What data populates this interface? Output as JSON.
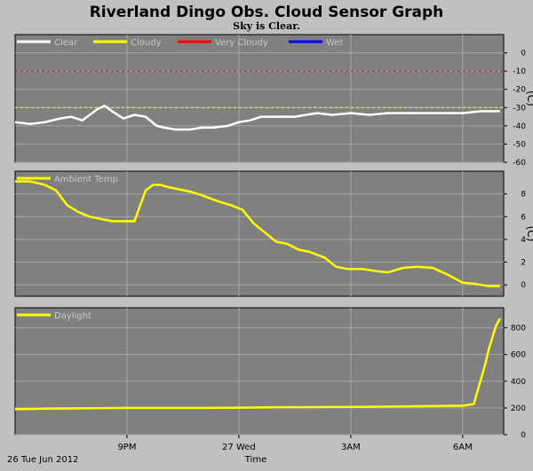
{
  "title": "Riverland Dingo Obs. Cloud Sensor Graph",
  "subtitle": "Sky is Clear.",
  "x_axis": {
    "label": "Time",
    "date_label": "26 Tue Jun 2012",
    "ticks": [
      {
        "t": 3.0,
        "label": "9PM"
      },
      {
        "t": 6.0,
        "label": "27 Wed"
      },
      {
        "t": 9.0,
        "label": "3AM"
      },
      {
        "t": 12.0,
        "label": "6AM"
      }
    ],
    "range_hours_after_6pm": [
      0,
      13.1
    ]
  },
  "colors": {
    "background": "#c0c0c0",
    "plot_background": "#808080",
    "grid": "#a6a6a6",
    "clear": "#ffffff",
    "cloudy": "#ffff00",
    "very_cloudy": "#ff0000",
    "wet": "#0000ff",
    "legend_text": "#c8c8c8"
  },
  "chart_data": [
    {
      "type": "line",
      "name": "sky-temperature",
      "ylabel": "(C)",
      "ylim": [
        -60,
        10
      ],
      "yticks": [
        0,
        -10,
        -20,
        -30,
        -40,
        -50,
        -60
      ],
      "legend": [
        {
          "name": "Clear",
          "color": "#ffffff"
        },
        {
          "name": "Cloudy",
          "color": "#ffff00"
        },
        {
          "name": "Very Cloudy",
          "color": "#ff0000"
        },
        {
          "name": "Wet",
          "color": "#0000ff"
        }
      ],
      "thresholds": [
        {
          "series": "Very Cloudy",
          "y": -10
        },
        {
          "series": "Cloudy",
          "y": -30
        }
      ],
      "series": [
        {
          "name": "Clear",
          "x": [
            0,
            0.4,
            0.8,
            1.2,
            1.5,
            1.8,
            2.0,
            2.2,
            2.4,
            2.6,
            2.9,
            3.2,
            3.5,
            3.8,
            4.0,
            4.3,
            4.7,
            5.0,
            5.3,
            5.7,
            6.0,
            6.3,
            6.6,
            6.9,
            7.2,
            7.5,
            7.8,
            8.1,
            8.5,
            9.0,
            9.5,
            10.0,
            10.5,
            11.0,
            11.5,
            12.0,
            12.5,
            13.0
          ],
          "y": [
            -38,
            -39,
            -38,
            -36,
            -35,
            -37,
            -34,
            -31,
            -29,
            -32,
            -36,
            -34,
            -35,
            -40,
            -41,
            -42,
            -42,
            -41,
            -41,
            -40,
            -38,
            -37,
            -35,
            -35,
            -35,
            -35,
            -34,
            -33,
            -34,
            -33,
            -34,
            -33,
            -33,
            -33,
            -33,
            -33,
            -32,
            -32
          ]
        }
      ]
    },
    {
      "type": "line",
      "name": "ambient-temperature",
      "ylabel": "(C)",
      "ylim": [
        -1,
        10
      ],
      "yticks": [
        8,
        6,
        4,
        2,
        0
      ],
      "legend": [
        {
          "name": "Ambient Temp",
          "color": "#ffff00"
        }
      ],
      "series": [
        {
          "name": "Ambient Temp",
          "x": [
            0,
            0.4,
            0.8,
            1.1,
            1.4,
            1.7,
            2.0,
            2.3,
            2.6,
            2.9,
            3.2,
            3.5,
            3.7,
            3.9,
            4.1,
            4.4,
            4.7,
            5.0,
            5.4,
            5.8,
            6.1,
            6.4,
            6.7,
            7.0,
            7.3,
            7.6,
            7.9,
            8.3,
            8.6,
            8.9,
            9.3,
            9.7,
            10.0,
            10.4,
            10.8,
            11.2,
            11.6,
            12.0,
            12.3,
            12.5,
            12.7,
            13.0
          ],
          "y": [
            9.1,
            9.1,
            8.8,
            8.3,
            7.0,
            6.4,
            6.0,
            5.8,
            5.6,
            5.6,
            5.6,
            8.3,
            8.8,
            8.8,
            8.6,
            8.4,
            8.2,
            7.9,
            7.4,
            7.0,
            6.6,
            5.4,
            4.6,
            3.8,
            3.6,
            3.1,
            2.9,
            2.4,
            1.6,
            1.4,
            1.4,
            1.2,
            1.1,
            1.5,
            1.6,
            1.5,
            0.9,
            0.2,
            0.1,
            0.0,
            -0.1,
            -0.1
          ]
        }
      ]
    },
    {
      "type": "line",
      "name": "daylight",
      "ylabel": "",
      "ylim": [
        0,
        950
      ],
      "yticks": [
        800,
        600,
        400,
        200,
        0
      ],
      "legend": [
        {
          "name": "Daylight",
          "color": "#ffff00"
        }
      ],
      "series": [
        {
          "name": "Daylight",
          "x": [
            0,
            1.0,
            2.0,
            3.0,
            4.0,
            5.0,
            6.0,
            7.0,
            8.0,
            9.0,
            10.0,
            11.0,
            11.5,
            12.0,
            12.3,
            12.6,
            12.7,
            12.8,
            12.9,
            13.0
          ],
          "y": [
            190,
            195,
            198,
            200,
            200,
            200,
            202,
            205,
            206,
            208,
            210,
            213,
            215,
            216,
            230,
            520,
            640,
            730,
            820,
            870
          ]
        }
      ]
    }
  ]
}
